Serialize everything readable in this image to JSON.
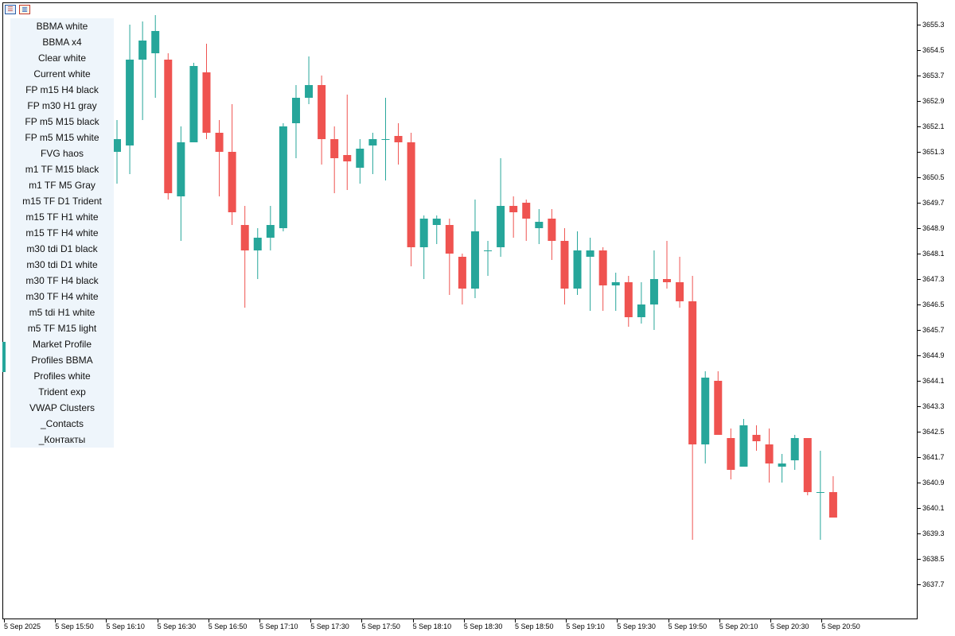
{
  "toolbar": {
    "icons": [
      {
        "name": "list-icon"
      },
      {
        "name": "chart-icon"
      }
    ]
  },
  "menu": {
    "items": [
      "BBMA white",
      "BBMA x4",
      "Clear white",
      "Current white",
      "FP m15 H4 black",
      "FP m30 H1 gray",
      "FP m5 M15 black",
      "FP m5 M15 white",
      "FVG haos",
      "m1 TF M15 black",
      "m1 TF M5 Gray",
      "m15 TF D1 Trident",
      "m15 TF H1 white",
      "m15 TF H4 white",
      "m30 tdi D1 black",
      "m30 tdi D1 white",
      "m30 TF H4 black",
      "m30 TF H4 white",
      "m5 tdi H1 white",
      "m5 TF M15 light",
      "Market Profile",
      "Profiles BBMA",
      "Profiles white",
      "Trident exp",
      "VWAP Clusters",
      "_Contacts",
      "_Контакты"
    ]
  },
  "colors": {
    "bull": "#26a69a",
    "bear": "#ef5350",
    "menu_bg": "#eef5fb"
  },
  "chart_data": {
    "type": "candlestick",
    "price_axis_ticks": [
      "3655.3",
      "3654.5",
      "3653.7",
      "3652.9",
      "3652.1",
      "3651.3",
      "3650.5",
      "3649.7",
      "3648.9",
      "3648.1",
      "3647.3",
      "3646.5",
      "3645.7",
      "3644.9",
      "3644.1",
      "3643.3",
      "3642.5",
      "3641.7",
      "3640.9",
      "3640.1",
      "3639.3",
      "3638.5",
      "3637.7"
    ],
    "time_axis_ticks": [
      "5 Sep 2025",
      "5 Sep 15:50",
      "5 Sep 16:10",
      "5 Sep 16:30",
      "5 Sep 16:50",
      "5 Sep 17:10",
      "5 Sep 17:30",
      "5 Sep 17:50",
      "5 Sep 18:10",
      "5 Sep 18:30",
      "5 Sep 18:50",
      "5 Sep 19:10",
      "5 Sep 19:30",
      "5 Sep 19:50",
      "5 Sep 20:10",
      "5 Sep 20:30",
      "5 Sep 20:50"
    ],
    "ylim": [
      3637.0,
      3655.8
    ],
    "candles": [
      {
        "o": 3651.3,
        "h": 3652.3,
        "l": 3650.3,
        "c": 3651.7
      },
      {
        "o": 3651.5,
        "h": 3655.3,
        "l": 3650.6,
        "c": 3654.2
      },
      {
        "o": 3654.2,
        "h": 3655.4,
        "l": 3652.3,
        "c": 3654.8
      },
      {
        "o": 3654.4,
        "h": 3655.6,
        "l": 3653.0,
        "c": 3655.1
      },
      {
        "o": 3654.2,
        "h": 3654.4,
        "l": 3649.8,
        "c": 3650.0
      },
      {
        "o": 3649.9,
        "h": 3652.1,
        "l": 3648.5,
        "c": 3651.6
      },
      {
        "o": 3651.6,
        "h": 3654.1,
        "l": 3651.6,
        "c": 3654.0
      },
      {
        "o": 3653.8,
        "h": 3654.7,
        "l": 3651.7,
        "c": 3651.9
      },
      {
        "o": 3651.9,
        "h": 3652.3,
        "l": 3649.9,
        "c": 3651.3
      },
      {
        "o": 3651.3,
        "h": 3652.8,
        "l": 3649.0,
        "c": 3649.4
      },
      {
        "o": 3649.0,
        "h": 3649.6,
        "l": 3646.4,
        "c": 3648.2
      },
      {
        "o": 3648.2,
        "h": 3648.9,
        "l": 3647.3,
        "c": 3648.6
      },
      {
        "o": 3648.6,
        "h": 3649.6,
        "l": 3648.2,
        "c": 3649.0
      },
      {
        "o": 3648.9,
        "h": 3652.2,
        "l": 3648.8,
        "c": 3652.1
      },
      {
        "o": 3652.2,
        "h": 3653.4,
        "l": 3651.1,
        "c": 3653.0
      },
      {
        "o": 3653.0,
        "h": 3654.3,
        "l": 3652.8,
        "c": 3653.4
      },
      {
        "o": 3653.4,
        "h": 3653.7,
        "l": 3650.9,
        "c": 3651.7
      },
      {
        "o": 3651.7,
        "h": 3652.1,
        "l": 3650.0,
        "c": 3651.1
      },
      {
        "o": 3651.2,
        "h": 3653.1,
        "l": 3650.1,
        "c": 3651.0
      },
      {
        "o": 3650.8,
        "h": 3651.7,
        "l": 3650.3,
        "c": 3651.4
      },
      {
        "o": 3651.5,
        "h": 3651.9,
        "l": 3650.6,
        "c": 3651.7
      },
      {
        "o": 3651.7,
        "h": 3653.0,
        "l": 3650.4,
        "c": 3651.7
      },
      {
        "o": 3651.8,
        "h": 3652.2,
        "l": 3650.9,
        "c": 3651.6
      },
      {
        "o": 3651.6,
        "h": 3651.9,
        "l": 3647.7,
        "c": 3648.3
      },
      {
        "o": 3648.3,
        "h": 3649.3,
        "l": 3647.3,
        "c": 3649.2
      },
      {
        "o": 3649.0,
        "h": 3649.3,
        "l": 3648.4,
        "c": 3649.2
      },
      {
        "o": 3649.0,
        "h": 3649.2,
        "l": 3646.8,
        "c": 3648.1
      },
      {
        "o": 3648.0,
        "h": 3648.1,
        "l": 3646.5,
        "c": 3647.0
      },
      {
        "o": 3647.0,
        "h": 3649.8,
        "l": 3646.7,
        "c": 3648.8
      },
      {
        "o": 3648.2,
        "h": 3648.5,
        "l": 3647.4,
        "c": 3648.2
      },
      {
        "o": 3648.3,
        "h": 3651.1,
        "l": 3648.0,
        "c": 3649.6
      },
      {
        "o": 3649.6,
        "h": 3649.9,
        "l": 3648.6,
        "c": 3649.4
      },
      {
        "o": 3649.7,
        "h": 3649.8,
        "l": 3648.5,
        "c": 3649.2
      },
      {
        "o": 3648.9,
        "h": 3649.5,
        "l": 3648.4,
        "c": 3649.1
      },
      {
        "o": 3649.2,
        "h": 3649.5,
        "l": 3647.9,
        "c": 3648.5
      },
      {
        "o": 3648.5,
        "h": 3648.9,
        "l": 3646.5,
        "c": 3647.0
      },
      {
        "o": 3647.0,
        "h": 3648.8,
        "l": 3646.8,
        "c": 3648.2
      },
      {
        "o": 3648.0,
        "h": 3648.6,
        "l": 3646.3,
        "c": 3648.2
      },
      {
        "o": 3648.2,
        "h": 3648.3,
        "l": 3646.3,
        "c": 3647.1
      },
      {
        "o": 3647.1,
        "h": 3647.5,
        "l": 3646.3,
        "c": 3647.2
      },
      {
        "o": 3647.2,
        "h": 3647.4,
        "l": 3645.8,
        "c": 3646.1
      },
      {
        "o": 3646.1,
        "h": 3647.2,
        "l": 3645.9,
        "c": 3646.5
      },
      {
        "o": 3646.5,
        "h": 3648.2,
        "l": 3645.7,
        "c": 3647.3
      },
      {
        "o": 3647.3,
        "h": 3648.5,
        "l": 3647.0,
        "c": 3647.2
      },
      {
        "o": 3647.2,
        "h": 3648.0,
        "l": 3646.4,
        "c": 3646.6
      },
      {
        "o": 3646.6,
        "h": 3647.4,
        "l": 3639.1,
        "c": 3642.1
      },
      {
        "o": 3642.1,
        "h": 3644.4,
        "l": 3641.5,
        "c": 3644.2
      },
      {
        "o": 3644.1,
        "h": 3644.4,
        "l": 3642.4,
        "c": 3642.4
      },
      {
        "o": 3642.3,
        "h": 3642.6,
        "l": 3641.0,
        "c": 3641.3
      },
      {
        "o": 3641.4,
        "h": 3642.9,
        "l": 3641.4,
        "c": 3642.7
      },
      {
        "o": 3642.4,
        "h": 3642.7,
        "l": 3641.9,
        "c": 3642.2
      },
      {
        "o": 3642.1,
        "h": 3642.6,
        "l": 3640.9,
        "c": 3641.5
      },
      {
        "o": 3641.4,
        "h": 3641.8,
        "l": 3640.9,
        "c": 3641.5
      },
      {
        "o": 3641.6,
        "h": 3642.4,
        "l": 3641.3,
        "c": 3642.3
      },
      {
        "o": 3642.3,
        "h": 3642.3,
        "l": 3640.5,
        "c": 3640.6
      },
      {
        "o": 3640.6,
        "h": 3641.9,
        "l": 3639.1,
        "c": 3640.6
      },
      {
        "o": 3640.6,
        "h": 3641.1,
        "l": 3639.8,
        "c": 3639.8
      }
    ]
  }
}
